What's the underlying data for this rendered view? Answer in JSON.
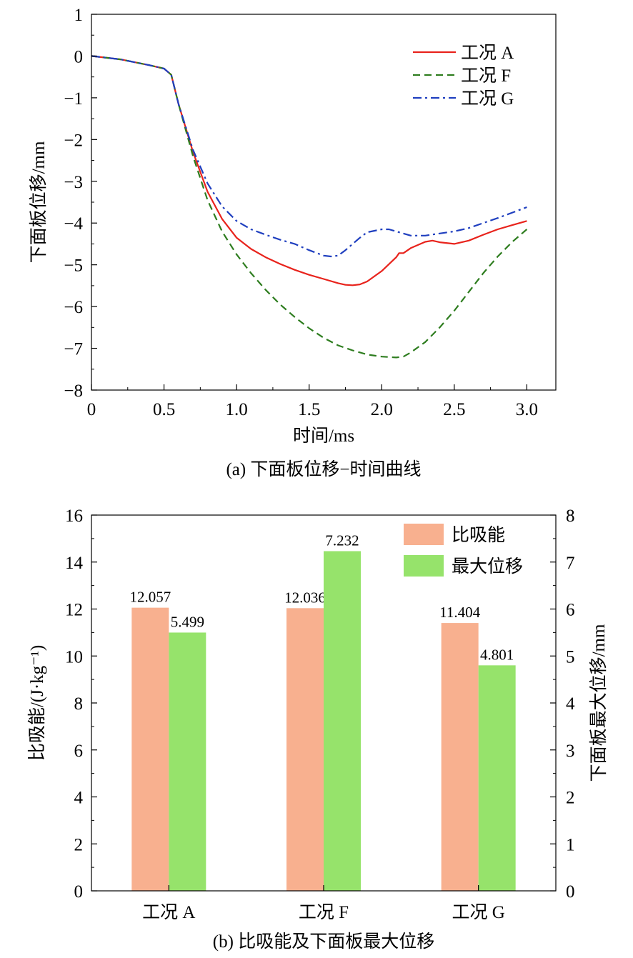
{
  "chart_data": [
    {
      "type": "line",
      "caption": "(a) 下面板位移−时间曲线",
      "xlabel": "时间/ms",
      "ylabel": "下面板位移/mm",
      "xlim": [
        0,
        3.2
      ],
      "ylim": [
        -8,
        1
      ],
      "xticks": [
        0,
        0.5,
        1.0,
        1.5,
        2.0,
        2.5,
        3.0
      ],
      "xtick_labels": [
        "0",
        "0.5",
        "1.0",
        "1.5",
        "2.0",
        "2.5",
        "3.0"
      ],
      "yticks": [
        1,
        0,
        -1,
        -2,
        -3,
        -4,
        -5,
        -6,
        -7,
        -8
      ],
      "ytick_labels": [
        "1",
        "0",
        "−1",
        "−2",
        "−3",
        "−4",
        "−5",
        "−6",
        "−7",
        "−8"
      ],
      "legend_position": "top-right",
      "series": [
        {
          "name": "工况 A",
          "color": "#e8231c",
          "dash": "solid",
          "x": [
            0,
            0.2,
            0.4,
            0.5,
            0.55,
            0.6,
            0.7,
            0.8,
            0.9,
            1.0,
            1.1,
            1.2,
            1.3,
            1.4,
            1.5,
            1.6,
            1.7,
            1.75,
            1.8,
            1.85,
            1.9,
            2.0,
            2.1,
            2.12,
            2.15,
            2.2,
            2.3,
            2.35,
            2.4,
            2.5,
            2.6,
            2.7,
            2.8,
            2.9,
            3.0
          ],
          "y": [
            0,
            -0.08,
            -0.22,
            -0.3,
            -0.45,
            -1.15,
            -2.3,
            -3.25,
            -3.9,
            -4.35,
            -4.62,
            -4.82,
            -4.98,
            -5.12,
            -5.24,
            -5.34,
            -5.44,
            -5.48,
            -5.49,
            -5.47,
            -5.4,
            -5.15,
            -4.82,
            -4.72,
            -4.72,
            -4.6,
            -4.45,
            -4.42,
            -4.46,
            -4.5,
            -4.42,
            -4.28,
            -4.15,
            -4.05,
            -3.95
          ]
        },
        {
          "name": "工况 F",
          "color": "#2e7d1f",
          "dash": "dashed",
          "x": [
            0,
            0.2,
            0.4,
            0.5,
            0.55,
            0.6,
            0.7,
            0.8,
            0.9,
            1.0,
            1.1,
            1.2,
            1.3,
            1.4,
            1.5,
            1.6,
            1.7,
            1.8,
            1.9,
            2.0,
            2.1,
            2.15,
            2.2,
            2.3,
            2.4,
            2.5,
            2.6,
            2.7,
            2.8,
            2.9,
            3.0
          ],
          "y": [
            0,
            -0.08,
            -0.22,
            -0.3,
            -0.45,
            -1.15,
            -2.4,
            -3.45,
            -4.2,
            -4.75,
            -5.2,
            -5.6,
            -5.95,
            -6.25,
            -6.52,
            -6.75,
            -6.93,
            -7.05,
            -7.15,
            -7.2,
            -7.22,
            -7.2,
            -7.1,
            -6.85,
            -6.5,
            -6.1,
            -5.65,
            -5.2,
            -4.8,
            -4.45,
            -4.15
          ]
        },
        {
          "name": "工况 G",
          "color": "#1f3fbf",
          "dash": "dashdot",
          "x": [
            0,
            0.2,
            0.4,
            0.5,
            0.55,
            0.6,
            0.7,
            0.8,
            0.9,
            1.0,
            1.1,
            1.2,
            1.3,
            1.4,
            1.5,
            1.6,
            1.65,
            1.7,
            1.75,
            1.8,
            1.85,
            1.9,
            2.0,
            2.05,
            2.1,
            2.2,
            2.3,
            2.4,
            2.5,
            2.6,
            2.7,
            2.8,
            2.9,
            3.0
          ],
          "y": [
            0,
            -0.08,
            -0.22,
            -0.3,
            -0.45,
            -1.15,
            -2.25,
            -3.05,
            -3.6,
            -3.95,
            -4.15,
            -4.28,
            -4.4,
            -4.5,
            -4.65,
            -4.78,
            -4.8,
            -4.78,
            -4.65,
            -4.5,
            -4.35,
            -4.22,
            -4.15,
            -4.15,
            -4.2,
            -4.3,
            -4.3,
            -4.25,
            -4.2,
            -4.12,
            -4.0,
            -3.88,
            -3.75,
            -3.62
          ]
        }
      ]
    },
    {
      "type": "bar",
      "caption": "(b) 比吸能及下面板最大位移",
      "categories": [
        "工况 A",
        "工况 F",
        "工况 G"
      ],
      "ylabel": "比吸能/(J·kg⁻¹)",
      "ylabel_right": "下面板最大位移/mm",
      "ylim": [
        0,
        16
      ],
      "ylim_right": [
        0,
        8
      ],
      "yticks": [
        0,
        2,
        4,
        6,
        8,
        10,
        12,
        14,
        16
      ],
      "yticks_right": [
        0,
        1,
        2,
        3,
        4,
        5,
        6,
        7,
        8
      ],
      "legend_position": "top-right",
      "series": [
        {
          "name": "比吸能",
          "axis": "left",
          "color": "#f8b08f",
          "values": [
            12.057,
            12.036,
            11.404
          ],
          "labels": [
            "12.057",
            "12.036",
            "11.404"
          ]
        },
        {
          "name": "最大位移",
          "axis": "right",
          "color": "#96e36b",
          "values": [
            5.499,
            7.232,
            4.801
          ],
          "labels": [
            "5.499",
            "7.232",
            "4.801"
          ]
        }
      ]
    }
  ]
}
